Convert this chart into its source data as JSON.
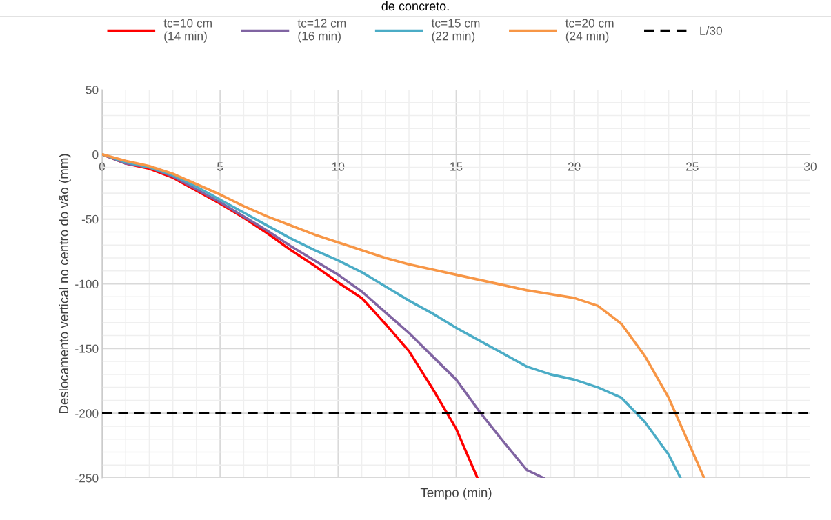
{
  "chart_data": {
    "type": "line",
    "title": "de concreto.",
    "xlabel": "Tempo (min)",
    "ylabel": "Deslocamento vertical no centro do vão (mm)",
    "xlim": [
      0,
      30
    ],
    "xticks": [
      0,
      5,
      10,
      15,
      20,
      25,
      30
    ],
    "ylim": [
      -250,
      50
    ],
    "yticks": [
      -250,
      -200,
      -150,
      -100,
      -50,
      0,
      50
    ],
    "grid": true,
    "legend": "top",
    "line_style": "solid",
    "marker": "none",
    "series": [
      {
        "name": "tc=10 cm\n(14 min)",
        "color": "#ff0000",
        "x": [
          0,
          1,
          2,
          3,
          4,
          5,
          6,
          7,
          8,
          9,
          10,
          11,
          12,
          13,
          14,
          15,
          15.9
        ],
        "values": [
          0,
          -7,
          -11,
          -18,
          -28,
          -38,
          -49,
          -61,
          -74,
          -86,
          -99,
          -111,
          -131,
          -152,
          -181,
          -212,
          -250
        ]
      },
      {
        "name": "tc=12 cm\n(16 min)",
        "color": "#8064a2",
        "x": [
          0,
          1,
          2,
          3,
          4,
          5,
          6,
          7,
          8,
          9,
          10,
          11,
          12,
          13,
          14,
          15,
          16,
          17,
          18,
          18.7
        ],
        "values": [
          0,
          -7,
          -10,
          -17,
          -27,
          -37,
          -48,
          -59,
          -71,
          -82,
          -93,
          -106,
          -122,
          -138,
          -156,
          -174,
          -199,
          -222,
          -244,
          -250
        ]
      },
      {
        "name": "tc=15 cm\n(22 min)",
        "color": "#4bacc6",
        "x": [
          0,
          1,
          2,
          3,
          4,
          5,
          6,
          7,
          8,
          9,
          10,
          11,
          12,
          13,
          14,
          15,
          16,
          17,
          18,
          19,
          20,
          21,
          22,
          23,
          24,
          24.5
        ],
        "values": [
          0,
          -6,
          -10,
          -16,
          -25,
          -35,
          -45,
          -55,
          -65,
          -74,
          -82,
          -91,
          -102,
          -113,
          -123,
          -134,
          -144,
          -154,
          -164,
          -170,
          -174,
          -180,
          -188,
          -207,
          -232,
          -250
        ]
      },
      {
        "name": "tc=20 cm\n(24 min)",
        "color": "#f79646",
        "x": [
          0,
          1,
          2,
          3,
          4,
          5,
          6,
          7,
          8,
          9,
          10,
          11,
          12,
          13,
          14,
          15,
          16,
          17,
          18,
          19,
          20,
          21,
          22,
          23,
          24,
          25.5
        ],
        "values": [
          0,
          -5,
          -9,
          -15,
          -23,
          -31,
          -40,
          -48,
          -55,
          -62,
          -68,
          -74,
          -80,
          -85,
          -89,
          -93,
          -97,
          -101,
          -105,
          -108,
          -111,
          -117,
          -131,
          -156,
          -188,
          -250
        ]
      }
    ],
    "ref_lines": [
      {
        "axis": "y",
        "value": -200,
        "label": "L/30",
        "color": "#000000",
        "line_style": "dashed"
      }
    ]
  }
}
